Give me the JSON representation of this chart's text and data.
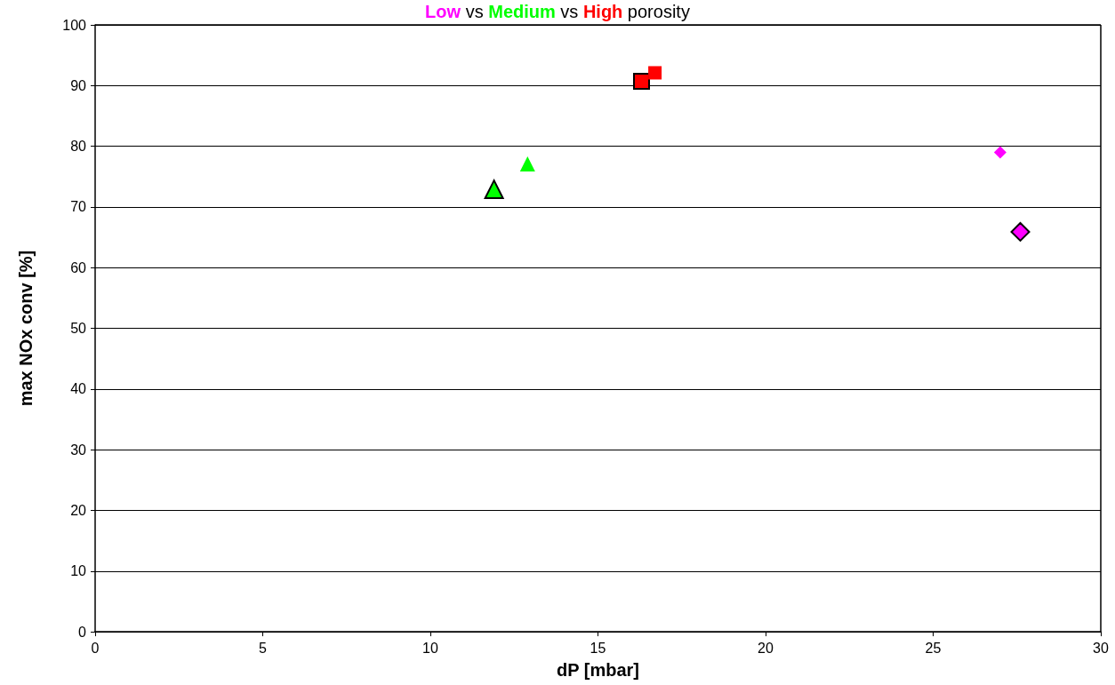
{
  "chart_data": {
    "type": "scatter",
    "title": "Low vs Medium vs High porosity",
    "xlabel": "dP [mbar]",
    "ylabel": "max NOx conv [%]",
    "series": [
      {
        "color": "#ff00ff",
        "marker": "diamond",
        "x": [
          27.6
        ],
        "values": [
          65.9
        ]
      },
      {
        "color": "#ff00ff",
        "marker": "diamond",
        "x": [
          27.0
        ],
        "values": [
          79.0
        ]
      },
      {
        "color": "#00ff00",
        "marker": "triangle",
        "x": [
          11.9
        ],
        "values": [
          72.9
        ]
      },
      {
        "color": "#00ff00",
        "marker": "triangle",
        "x": [
          12.9
        ],
        "values": [
          77.1
        ]
      },
      {
        "color": "#ff0000",
        "marker": "square",
        "x": [
          16.3
        ],
        "values": [
          90.7
        ]
      },
      {
        "color": "#ff0000",
        "marker": "square",
        "x": [
          16.7
        ],
        "values": [
          92.1
        ]
      }
    ],
    "xlim": [
      0,
      30
    ],
    "xticks": [
      0,
      5,
      10,
      15,
      20,
      25,
      30
    ],
    "ylim": [
      0,
      100
    ],
    "yticks": [
      0,
      10,
      20,
      30,
      40,
      50,
      60,
      70,
      80,
      90,
      100
    ],
    "grid": "y"
  }
}
